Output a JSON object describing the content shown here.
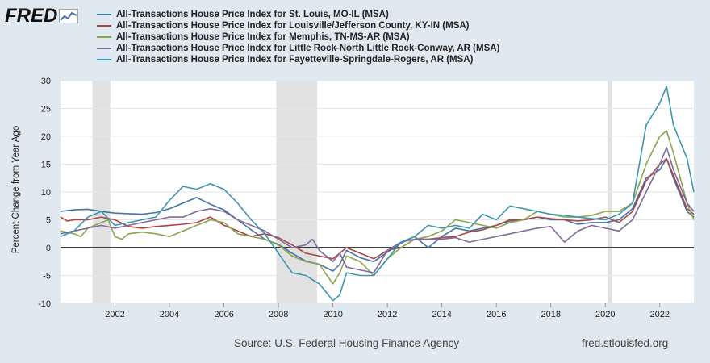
{
  "brand": {
    "name": "FRED"
  },
  "legend": [
    {
      "label": "All-Transactions House Price Index for St. Louis, MO-IL (MSA)",
      "color": "#4572a7"
    },
    {
      "label": "All-Transactions House Price Index for Louisville/Jefferson County, KY-IN (MSA)",
      "color": "#aa4643"
    },
    {
      "label": "All-Transactions House Price Index for Memphis, TN-MS-AR (MSA)",
      "color": "#89a54e"
    },
    {
      "label": "All-Transactions House Price Index for Little Rock-North Little Rock-Conway, AR (MSA)",
      "color": "#80699b"
    },
    {
      "label": "All-Transactions House Price Index for Fayetteville-Springdale-Rogers, AR (MSA)",
      "color": "#3d96ae"
    }
  ],
  "y_axis_label": "Percent Change from Year Ago",
  "source": "Source: U.S. Federal Housing Finance Agency",
  "url": "fred.stlouisfed.org",
  "chart_data": {
    "type": "line",
    "ylabel": "Percent Change from Year Ago",
    "xlim": [
      2000.0,
      2023.25
    ],
    "ylim": [
      -10,
      30
    ],
    "y_ticks": [
      -10,
      -5,
      0,
      5,
      10,
      15,
      20,
      25,
      30
    ],
    "x_ticks": [
      "2002",
      "2004",
      "2006",
      "2008",
      "2010",
      "2012",
      "2014",
      "2016",
      "2018",
      "2020",
      "2022"
    ],
    "grid": "horizontal",
    "recessions": [
      [
        2001.17,
        2001.83
      ],
      [
        2007.92,
        2009.42
      ],
      [
        2020.08,
        2020.25
      ]
    ],
    "series": [
      {
        "name": "All-Transactions House Price Index for St. Louis, MO-IL (MSA)",
        "color": "#4572a7",
        "points": [
          [
            2000.0,
            6.5
          ],
          [
            2000.5,
            6.8
          ],
          [
            2001.0,
            6.9
          ],
          [
            2001.5,
            6.5
          ],
          [
            2002.0,
            6.2
          ],
          [
            2002.5,
            6.1
          ],
          [
            2003.0,
            6.0
          ],
          [
            2003.5,
            6.3
          ],
          [
            2004.0,
            7.0
          ],
          [
            2004.5,
            8.0
          ],
          [
            2005.0,
            9.0
          ],
          [
            2005.5,
            7.8
          ],
          [
            2006.0,
            6.8
          ],
          [
            2006.5,
            5.0
          ],
          [
            2007.0,
            3.2
          ],
          [
            2007.5,
            1.5
          ],
          [
            2008.0,
            0.6
          ],
          [
            2008.5,
            -1.0
          ],
          [
            2009.0,
            -2.4
          ],
          [
            2009.5,
            -3.0
          ],
          [
            2010.0,
            -4.2
          ],
          [
            2010.25,
            -3.0
          ],
          [
            2010.5,
            -0.5
          ],
          [
            2011.0,
            -1.8
          ],
          [
            2011.5,
            -2.5
          ],
          [
            2012.0,
            -0.8
          ],
          [
            2012.5,
            0.8
          ],
          [
            2013.0,
            2.0
          ],
          [
            2013.5,
            0.0
          ],
          [
            2014.0,
            2.0
          ],
          [
            2014.5,
            3.5
          ],
          [
            2015.0,
            3.0
          ],
          [
            2015.5,
            3.5
          ],
          [
            2016.0,
            4.0
          ],
          [
            2016.5,
            4.8
          ],
          [
            2017.0,
            5.0
          ],
          [
            2017.5,
            5.5
          ],
          [
            2018.0,
            5.0
          ],
          [
            2018.5,
            5.0
          ],
          [
            2019.0,
            4.2
          ],
          [
            2019.5,
            4.5
          ],
          [
            2020.0,
            4.5
          ],
          [
            2020.5,
            5.0
          ],
          [
            2021.0,
            7.0
          ],
          [
            2021.5,
            12.5
          ],
          [
            2022.0,
            14.0
          ],
          [
            2022.25,
            16.0
          ],
          [
            2022.5,
            12.5
          ],
          [
            2023.0,
            6.5
          ],
          [
            2023.25,
            5.5
          ]
        ]
      },
      {
        "name": "All-Transactions House Price Index for Louisville/Jefferson County, KY-IN (MSA)",
        "color": "#aa4643",
        "points": [
          [
            2000.0,
            5.5
          ],
          [
            2000.25,
            4.8
          ],
          [
            2000.5,
            5.0
          ],
          [
            2001.0,
            5.0
          ],
          [
            2001.5,
            5.5
          ],
          [
            2002.0,
            5.0
          ],
          [
            2002.5,
            3.8
          ],
          [
            2003.0,
            3.5
          ],
          [
            2003.5,
            3.8
          ],
          [
            2004.0,
            4.0
          ],
          [
            2004.5,
            4.2
          ],
          [
            2005.0,
            4.5
          ],
          [
            2005.5,
            5.5
          ],
          [
            2006.0,
            4.0
          ],
          [
            2006.5,
            3.0
          ],
          [
            2007.0,
            2.0
          ],
          [
            2007.5,
            2.5
          ],
          [
            2008.0,
            1.8
          ],
          [
            2008.5,
            0.5
          ],
          [
            2009.0,
            -1.0
          ],
          [
            2009.5,
            -1.5
          ],
          [
            2010.0,
            -2.0
          ],
          [
            2010.5,
            0.0
          ],
          [
            2011.0,
            -1.0
          ],
          [
            2011.5,
            -2.0
          ],
          [
            2012.0,
            -0.5
          ],
          [
            2012.5,
            0.0
          ],
          [
            2013.0,
            1.5
          ],
          [
            2013.5,
            1.5
          ],
          [
            2014.0,
            1.8
          ],
          [
            2014.5,
            2.0
          ],
          [
            2015.0,
            2.8
          ],
          [
            2015.5,
            3.2
          ],
          [
            2016.0,
            4.0
          ],
          [
            2016.5,
            5.0
          ],
          [
            2017.0,
            5.0
          ],
          [
            2017.5,
            5.5
          ],
          [
            2018.0,
            5.2
          ],
          [
            2018.5,
            5.0
          ],
          [
            2019.0,
            4.8
          ],
          [
            2019.5,
            5.0
          ],
          [
            2020.0,
            5.5
          ],
          [
            2020.5,
            4.5
          ],
          [
            2021.0,
            6.5
          ],
          [
            2021.5,
            12.0
          ],
          [
            2022.0,
            15.0
          ],
          [
            2022.25,
            16.0
          ],
          [
            2022.5,
            13.0
          ],
          [
            2023.0,
            7.0
          ],
          [
            2023.25,
            6.0
          ]
        ]
      },
      {
        "name": "All-Transactions House Price Index for Memphis, TN-MS-AR (MSA)",
        "color": "#89a54e",
        "points": [
          [
            2000.0,
            3.0
          ],
          [
            2000.5,
            2.5
          ],
          [
            2000.75,
            2.0
          ],
          [
            2001.0,
            3.5
          ],
          [
            2001.5,
            4.5
          ],
          [
            2001.75,
            5.0
          ],
          [
            2002.0,
            2.0
          ],
          [
            2002.25,
            1.5
          ],
          [
            2002.5,
            2.5
          ],
          [
            2003.0,
            2.8
          ],
          [
            2003.5,
            2.5
          ],
          [
            2004.0,
            2.0
          ],
          [
            2004.5,
            3.0
          ],
          [
            2005.0,
            4.0
          ],
          [
            2005.5,
            5.0
          ],
          [
            2006.0,
            4.5
          ],
          [
            2006.5,
            2.5
          ],
          [
            2007.0,
            2.0
          ],
          [
            2007.5,
            1.5
          ],
          [
            2008.0,
            0.5
          ],
          [
            2008.5,
            -1.5
          ],
          [
            2009.0,
            -2.5
          ],
          [
            2009.5,
            -3.0
          ],
          [
            2010.0,
            -6.5
          ],
          [
            2010.25,
            -4.5
          ],
          [
            2010.5,
            -1.5
          ],
          [
            2011.0,
            -2.5
          ],
          [
            2011.5,
            -5.0
          ],
          [
            2012.0,
            -2.0
          ],
          [
            2012.5,
            0.0
          ],
          [
            2013.0,
            1.5
          ],
          [
            2013.5,
            2.0
          ],
          [
            2014.0,
            3.0
          ],
          [
            2014.5,
            5.0
          ],
          [
            2015.0,
            4.5
          ],
          [
            2015.5,
            4.0
          ],
          [
            2016.0,
            3.5
          ],
          [
            2016.5,
            4.5
          ],
          [
            2017.0,
            5.0
          ],
          [
            2017.5,
            6.5
          ],
          [
            2018.0,
            6.0
          ],
          [
            2018.5,
            5.5
          ],
          [
            2019.0,
            5.5
          ],
          [
            2019.5,
            5.8
          ],
          [
            2020.0,
            6.5
          ],
          [
            2020.5,
            6.5
          ],
          [
            2021.0,
            8.0
          ],
          [
            2021.5,
            15.0
          ],
          [
            2022.0,
            20.0
          ],
          [
            2022.25,
            21.0
          ],
          [
            2022.5,
            17.0
          ],
          [
            2023.0,
            8.0
          ],
          [
            2023.25,
            5.0
          ]
        ]
      },
      {
        "name": "All-Transactions House Price Index for Little Rock-North Little Rock-Conway, AR (MSA)",
        "color": "#80699b",
        "points": [
          [
            2000.0,
            2.5
          ],
          [
            2000.5,
            3.0
          ],
          [
            2001.0,
            3.5
          ],
          [
            2001.5,
            4.0
          ],
          [
            2002.0,
            3.5
          ],
          [
            2002.5,
            4.0
          ],
          [
            2003.0,
            4.5
          ],
          [
            2003.5,
            5.0
          ],
          [
            2004.0,
            5.5
          ],
          [
            2004.5,
            5.5
          ],
          [
            2005.0,
            6.5
          ],
          [
            2005.5,
            7.0
          ],
          [
            2006.0,
            6.5
          ],
          [
            2006.5,
            5.0
          ],
          [
            2007.0,
            4.0
          ],
          [
            2007.5,
            3.0
          ],
          [
            2008.0,
            1.5
          ],
          [
            2008.5,
            0.0
          ],
          [
            2009.0,
            0.5
          ],
          [
            2009.25,
            1.5
          ],
          [
            2009.5,
            -0.5
          ],
          [
            2010.0,
            -2.5
          ],
          [
            2010.25,
            -1.0
          ],
          [
            2010.5,
            -3.5
          ],
          [
            2011.0,
            -4.0
          ],
          [
            2011.5,
            -4.5
          ],
          [
            2012.0,
            -0.5
          ],
          [
            2012.5,
            1.0
          ],
          [
            2013.0,
            1.5
          ],
          [
            2013.5,
            1.5
          ],
          [
            2014.0,
            1.5
          ],
          [
            2014.5,
            1.8
          ],
          [
            2015.0,
            1.0
          ],
          [
            2015.5,
            1.5
          ],
          [
            2016.0,
            2.0
          ],
          [
            2016.5,
            2.5
          ],
          [
            2017.0,
            3.0
          ],
          [
            2017.5,
            3.5
          ],
          [
            2018.0,
            3.8
          ],
          [
            2018.5,
            1.0
          ],
          [
            2019.0,
            3.0
          ],
          [
            2019.5,
            4.0
          ],
          [
            2020.0,
            3.5
          ],
          [
            2020.5,
            3.0
          ],
          [
            2021.0,
            5.0
          ],
          [
            2021.5,
            10.0
          ],
          [
            2022.0,
            15.0
          ],
          [
            2022.25,
            18.0
          ],
          [
            2022.5,
            14.0
          ],
          [
            2023.0,
            8.0
          ],
          [
            2023.25,
            6.5
          ]
        ]
      },
      {
        "name": "All-Transactions House Price Index for Fayetteville-Springdale-Rogers, AR (MSA)",
        "color": "#3d96ae",
        "points": [
          [
            2000.0,
            2.0
          ],
          [
            2000.5,
            3.0
          ],
          [
            2001.0,
            5.5
          ],
          [
            2001.5,
            6.5
          ],
          [
            2002.0,
            4.0
          ],
          [
            2002.5,
            4.5
          ],
          [
            2003.0,
            5.0
          ],
          [
            2003.5,
            5.5
          ],
          [
            2004.0,
            8.5
          ],
          [
            2004.5,
            11.0
          ],
          [
            2005.0,
            10.5
          ],
          [
            2005.5,
            11.5
          ],
          [
            2006.0,
            10.5
          ],
          [
            2006.5,
            8.0
          ],
          [
            2007.0,
            5.0
          ],
          [
            2007.5,
            2.5
          ],
          [
            2008.0,
            -1.0
          ],
          [
            2008.5,
            -4.5
          ],
          [
            2009.0,
            -5.0
          ],
          [
            2009.5,
            -6.5
          ],
          [
            2010.0,
            -9.5
          ],
          [
            2010.25,
            -8.5
          ],
          [
            2010.5,
            -4.5
          ],
          [
            2011.0,
            -5.0
          ],
          [
            2011.5,
            -5.0
          ],
          [
            2012.0,
            -2.0
          ],
          [
            2012.5,
            1.0
          ],
          [
            2013.0,
            2.0
          ],
          [
            2013.5,
            4.0
          ],
          [
            2014.0,
            3.5
          ],
          [
            2014.5,
            4.0
          ],
          [
            2015.0,
            3.5
          ],
          [
            2015.5,
            6.0
          ],
          [
            2016.0,
            5.0
          ],
          [
            2016.5,
            7.5
          ],
          [
            2017.0,
            7.0
          ],
          [
            2017.5,
            6.5
          ],
          [
            2018.0,
            6.0
          ],
          [
            2018.5,
            5.8
          ],
          [
            2019.0,
            5.5
          ],
          [
            2019.5,
            5.2
          ],
          [
            2020.0,
            5.0
          ],
          [
            2020.5,
            6.0
          ],
          [
            2021.0,
            8.0
          ],
          [
            2021.5,
            22.0
          ],
          [
            2022.0,
            26.0
          ],
          [
            2022.25,
            29.0
          ],
          [
            2022.5,
            22.0
          ],
          [
            2023.0,
            16.0
          ],
          [
            2023.25,
            10.0
          ]
        ]
      }
    ]
  }
}
